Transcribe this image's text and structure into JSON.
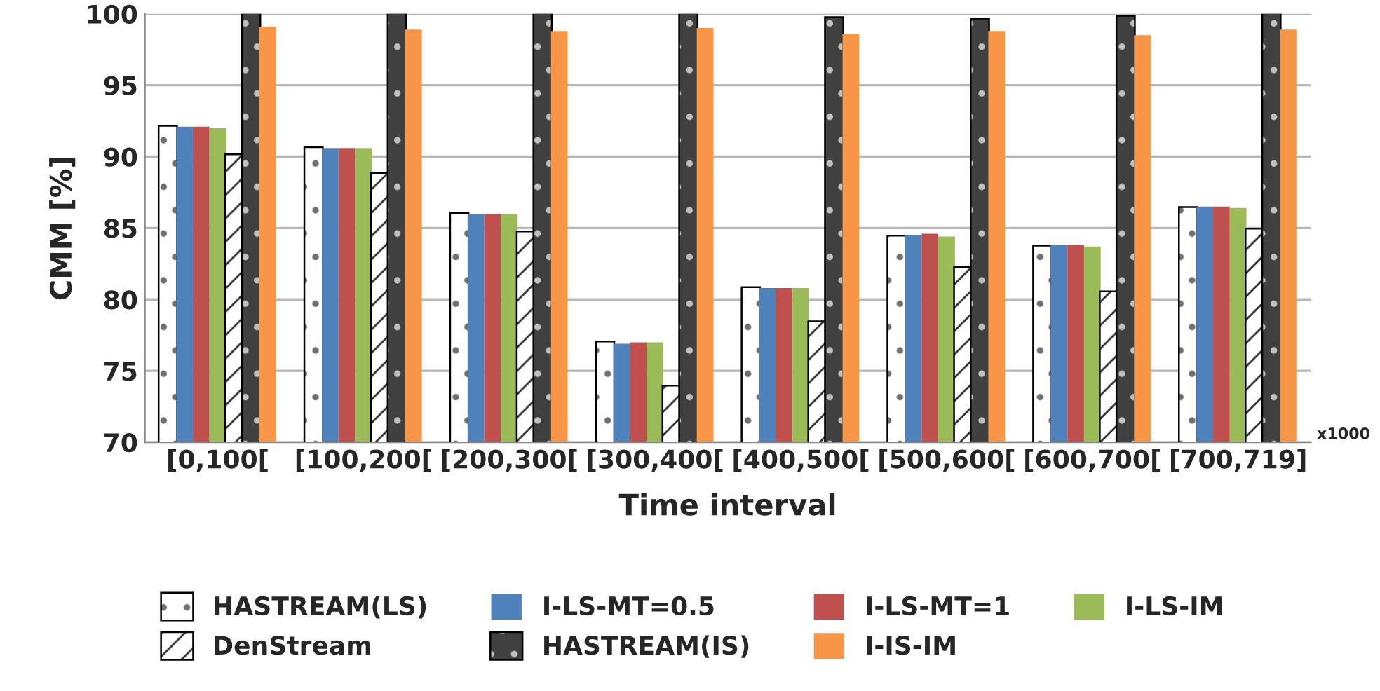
{
  "chart_data": {
    "type": "bar",
    "xlabel": "Time interval",
    "ylabel": "CMM [%]",
    "categories": [
      "[0,100[",
      "[100,200[",
      "[200,300[",
      "[300,400[",
      "[400,500[",
      "[500,600[",
      "[600,700[",
      "[700,719]"
    ],
    "series": [
      {
        "name": "HASTREAM(LS)",
        "color": "#ffffff",
        "values": [
          92.1,
          90.6,
          86.0,
          77.0,
          80.8,
          84.4,
          83.7,
          86.4
        ]
      },
      {
        "name": "I-LS-MT=0.5",
        "color": "#4f81bd",
        "values": [
          92.1,
          90.6,
          86.0,
          76.9,
          80.8,
          84.5,
          83.8,
          86.5
        ]
      },
      {
        "name": "I-LS-MT=1",
        "color": "#c0504d",
        "values": [
          92.1,
          90.6,
          86.0,
          77.0,
          80.8,
          84.6,
          83.8,
          86.5
        ]
      },
      {
        "name": "I-LS-IM",
        "color": "#9bbb59",
        "values": [
          92.0,
          90.6,
          86.0,
          77.0,
          80.8,
          84.4,
          83.7,
          86.4
        ]
      },
      {
        "name": "DenStream",
        "color": "#ffffff",
        "values": [
          90.1,
          88.8,
          84.7,
          73.9,
          78.4,
          82.2,
          80.5,
          84.9
        ]
      },
      {
        "name": "HASTREAM(IS)",
        "color": "#404040",
        "values": [
          100,
          100,
          100,
          100,
          99.7,
          99.6,
          99.8,
          100
        ]
      },
      {
        "name": "I-IS-IM",
        "color": "#f79646",
        "values": [
          99.1,
          98.9,
          98.8,
          99.0,
          98.6,
          98.8,
          98.5,
          98.9
        ]
      }
    ],
    "ylim": [
      70,
      100
    ],
    "yticks": [
      70,
      75,
      80,
      85,
      90,
      95,
      100
    ],
    "grid": "y",
    "legend": "bottom",
    "annotations": [
      "x1000"
    ]
  }
}
